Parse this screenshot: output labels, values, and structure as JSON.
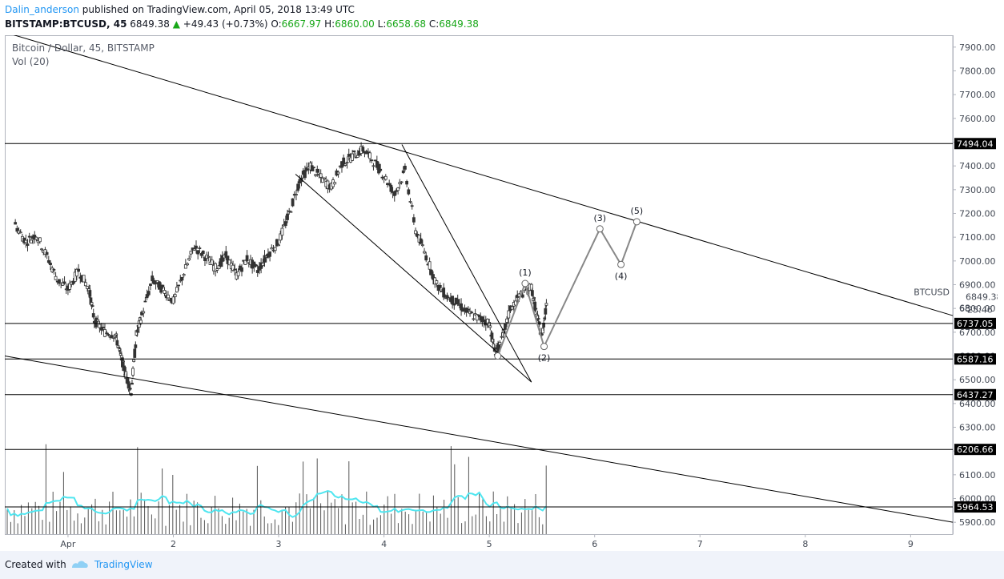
{
  "header": {
    "author": "Dalin_anderson",
    "published": "published on TradingView.com, April 05, 2018 13:49 UTC",
    "symbol": "BITSTAMP:BTCUSD, 45",
    "last": "6849.38",
    "change": "+49.43 (+0.73%)",
    "o_label": "O:",
    "o_value": "6667.97",
    "h_label": "H:",
    "h_value": "6860.00",
    "l_label": "L:",
    "l_value": "6658.68",
    "c_label": "C:",
    "c_value": "6849.38"
  },
  "overlay": {
    "title": "Bitcoin / Dollar, 45, BITSTAMP",
    "volume": "Vol (20)"
  },
  "footer": {
    "created": "Created with",
    "brand": "TradingView"
  },
  "colors": {
    "accent": "#2196f3",
    "up": "#18a718",
    "volume_ma": "#4fe6f0",
    "tag_bg": "#000000"
  },
  "chart_data": {
    "type": "candlestick",
    "y_axis": {
      "ylim": [
        5850,
        7950
      ],
      "ticks": [
        5900,
        6000,
        6100,
        6200,
        6300,
        6400,
        6500,
        6600,
        6700,
        6800,
        6900,
        7000,
        7100,
        7200,
        7300,
        7400,
        7500,
        7600,
        7700,
        7800,
        7900
      ],
      "tick_labels": [
        "5900.00",
        "6000.00",
        "6100.00",
        "6200.00",
        "6300.00",
        "6400.00",
        "6500.00",
        "6600.00",
        "6700.00",
        "6800.00",
        "6900.00",
        "7000.00",
        "7100.00",
        "7200.00",
        "7300.00",
        "7400.00",
        "7500.00",
        "7600.00",
        "7700.00",
        "7800.00",
        "7900.00"
      ]
    },
    "x_axis": {
      "xlim": [
        0.4,
        9.4
      ],
      "ticks": [
        1,
        2,
        3,
        4,
        5,
        6,
        7,
        8,
        9
      ],
      "tick_labels": [
        "Apr",
        "2",
        "3",
        "4",
        "5",
        "6",
        "7",
        "8",
        "9"
      ]
    },
    "horizontal_levels": [
      {
        "value": 7494.04,
        "label": "7494.04"
      },
      {
        "value": 6737.05,
        "label": "6737.05"
      },
      {
        "value": 6587.16,
        "label": "6587.16"
      },
      {
        "value": 6437.27,
        "label": "6437.27"
      },
      {
        "value": 6206.66,
        "label": "6206.66"
      },
      {
        "value": 5964.53,
        "label": "5964.53"
      }
    ],
    "price_label": {
      "symbol": "BTCUSD",
      "price": "6849.38",
      "countdown": "25:46",
      "partial": "68"
    },
    "trendlines": [
      {
        "x1": 0.42,
        "y1": 7960,
        "x2": 9.4,
        "y2": 6770
      },
      {
        "x1": 0.4,
        "y1": 6600,
        "x2": 9.4,
        "y2": 5900
      },
      {
        "x1": 3.16,
        "y1": 7365,
        "x2": 5.4,
        "y2": 6490
      },
      {
        "x1": 4.17,
        "y1": 7490,
        "x2": 5.4,
        "y2": 6490
      }
    ],
    "wave_path": [
      {
        "x": 5.08,
        "y": 6600,
        "label": ""
      },
      {
        "x": 5.34,
        "y": 6905,
        "label": "(1)"
      },
      {
        "x": 5.52,
        "y": 6640,
        "label": "(2)"
      },
      {
        "x": 6.05,
        "y": 7135,
        "label": "(3)"
      },
      {
        "x": 6.25,
        "y": 6985,
        "label": "(4)"
      },
      {
        "x": 6.4,
        "y": 7165,
        "label": "(5)"
      }
    ],
    "series": [
      {
        "name": "price",
        "points": [
          [
            0.5,
            7150
          ],
          [
            0.6,
            7080
          ],
          [
            0.7,
            7110
          ],
          [
            0.8,
            7020
          ],
          [
            0.9,
            6920
          ],
          [
            1.0,
            6880
          ],
          [
            1.1,
            6960
          ],
          [
            1.2,
            6880
          ],
          [
            1.25,
            6750
          ],
          [
            1.35,
            6700
          ],
          [
            1.45,
            6690
          ],
          [
            1.5,
            6600
          ],
          [
            1.55,
            6520
          ],
          [
            1.6,
            6450
          ],
          [
            1.65,
            6690
          ],
          [
            1.7,
            6770
          ],
          [
            1.8,
            6920
          ],
          [
            1.9,
            6880
          ],
          [
            2.0,
            6830
          ],
          [
            2.1,
            6950
          ],
          [
            2.2,
            7060
          ],
          [
            2.3,
            7020
          ],
          [
            2.4,
            6970
          ],
          [
            2.5,
            7020
          ],
          [
            2.6,
            6940
          ],
          [
            2.7,
            7010
          ],
          [
            2.8,
            6960
          ],
          [
            2.9,
            7030
          ],
          [
            3.0,
            7080
          ],
          [
            3.1,
            7200
          ],
          [
            3.2,
            7340
          ],
          [
            3.3,
            7400
          ],
          [
            3.4,
            7350
          ],
          [
            3.5,
            7310
          ],
          [
            3.6,
            7410
          ],
          [
            3.7,
            7440
          ],
          [
            3.8,
            7470
          ],
          [
            3.9,
            7420
          ],
          [
            4.0,
            7360
          ],
          [
            4.1,
            7280
          ],
          [
            4.2,
            7380
          ],
          [
            4.3,
            7130
          ],
          [
            4.4,
            7020
          ],
          [
            4.5,
            6900
          ],
          [
            4.6,
            6850
          ],
          [
            4.7,
            6820
          ],
          [
            4.8,
            6780
          ],
          [
            4.9,
            6760
          ],
          [
            5.0,
            6740
          ],
          [
            5.05,
            6620
          ],
          [
            5.1,
            6640
          ],
          [
            5.2,
            6800
          ],
          [
            5.3,
            6860
          ],
          [
            5.4,
            6890
          ],
          [
            5.45,
            6770
          ],
          [
            5.5,
            6680
          ],
          [
            5.55,
            6849.38
          ]
        ]
      },
      {
        "name": "volume",
        "ylim": [
          0,
          1
        ]
      }
    ]
  }
}
